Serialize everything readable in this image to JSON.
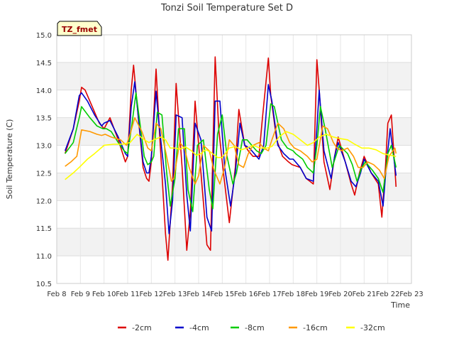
{
  "chart_data": {
    "type": "line",
    "title": "Tonzi Soil Temperature Set D",
    "xlabel": "Time",
    "ylabel": "Soil Temperature (C)",
    "xlim": [
      8,
      23
    ],
    "ylim": [
      10.5,
      15.0
    ],
    "x_ticks": [
      8,
      9,
      10,
      11,
      12,
      13,
      14,
      15,
      16,
      17,
      18,
      19,
      20,
      21,
      22,
      23
    ],
    "x_tick_labels": [
      "Feb 8",
      "Feb 9",
      "Feb 10",
      "Feb 11",
      "Feb 12",
      "Feb 13",
      "Feb 14",
      "Feb 15",
      "Feb 16",
      "Feb 17",
      "Feb 18",
      "Feb 19",
      "Feb 20",
      "Feb 21",
      "Feb 22",
      "Feb 23"
    ],
    "y_ticks": [
      10.5,
      11.0,
      11.5,
      12.0,
      12.5,
      13.0,
      13.5,
      14.0,
      14.5,
      15.0
    ],
    "y_tick_labels": [
      "10.5",
      "11.0",
      "11.5",
      "12.0",
      "12.5",
      "13.0",
      "13.5",
      "14.0",
      "14.5",
      "15.0"
    ],
    "grid": true,
    "legend_position": "bottom",
    "site_label": "TZ_fmet",
    "series": [
      {
        "name": "-2cm",
        "color": "#dd0000",
        "x": [
          8.35,
          8.7,
          8.95,
          9.05,
          9.2,
          9.5,
          9.8,
          10.0,
          10.25,
          10.6,
          10.9,
          11.0,
          11.15,
          11.25,
          11.45,
          11.65,
          11.8,
          11.9,
          12.0,
          12.2,
          12.35,
          12.6,
          12.7,
          12.9,
          13.05,
          13.3,
          13.5,
          13.65,
          13.85,
          14.1,
          14.35,
          14.5,
          14.7,
          14.85,
          15.05,
          15.3,
          15.55,
          15.7,
          15.95,
          16.1,
          16.3,
          16.55,
          16.7,
          16.95,
          17.05,
          17.3,
          17.55,
          17.8,
          17.95,
          18.3,
          18.55,
          18.85,
          19.0,
          19.1,
          19.3,
          19.55,
          19.75,
          19.9,
          20.2,
          20.45,
          20.6,
          20.8,
          21.0,
          21.3,
          21.6,
          21.75,
          21.9,
          22.0,
          22.15,
          22.35
        ],
        "y": [
          12.85,
          13.3,
          13.8,
          14.05,
          14.0,
          13.7,
          13.4,
          13.3,
          13.5,
          13.1,
          12.7,
          12.8,
          14.0,
          14.45,
          13.5,
          12.6,
          12.4,
          12.35,
          12.7,
          14.38,
          13.2,
          11.4,
          10.92,
          12.3,
          14.12,
          12.6,
          11.1,
          11.8,
          13.8,
          12.5,
          11.2,
          11.1,
          14.6,
          13.3,
          12.5,
          11.6,
          12.6,
          13.65,
          13.0,
          12.9,
          12.8,
          12.8,
          13.5,
          14.58,
          13.9,
          13.1,
          12.8,
          12.7,
          12.65,
          12.6,
          12.4,
          12.3,
          14.55,
          14.0,
          12.7,
          12.2,
          12.8,
          13.15,
          12.7,
          12.3,
          12.1,
          12.5,
          12.8,
          12.5,
          12.3,
          11.7,
          12.6,
          13.4,
          13.55,
          12.25
        ]
      },
      {
        "name": "-4cm",
        "color": "#0000cc",
        "x": [
          8.35,
          8.7,
          8.95,
          9.05,
          9.3,
          9.6,
          9.9,
          10.0,
          10.25,
          10.6,
          10.9,
          11.0,
          11.15,
          11.3,
          11.5,
          11.65,
          11.8,
          11.9,
          12.0,
          12.2,
          12.3,
          12.6,
          12.75,
          12.9,
          13.05,
          13.3,
          13.5,
          13.65,
          13.85,
          14.1,
          14.35,
          14.55,
          14.7,
          14.9,
          15.1,
          15.35,
          15.55,
          15.75,
          15.95,
          16.15,
          16.35,
          16.55,
          16.75,
          16.95,
          17.1,
          17.35,
          17.6,
          17.85,
          18.0,
          18.3,
          18.55,
          18.85,
          19.0,
          19.1,
          19.3,
          19.6,
          19.75,
          19.9,
          20.2,
          20.45,
          20.65,
          20.85,
          21.0,
          21.3,
          21.6,
          21.8,
          21.95,
          22.1,
          22.35
        ],
        "y": [
          12.9,
          13.3,
          13.9,
          13.95,
          13.8,
          13.55,
          13.35,
          13.4,
          13.45,
          13.15,
          12.85,
          12.8,
          13.7,
          14.15,
          13.3,
          12.7,
          12.5,
          12.5,
          12.8,
          13.98,
          13.5,
          12.3,
          11.4,
          12.0,
          13.55,
          13.5,
          12.1,
          11.45,
          13.4,
          13.1,
          11.7,
          11.45,
          13.8,
          13.8,
          12.6,
          11.9,
          12.5,
          13.4,
          13.0,
          12.95,
          12.85,
          12.75,
          13.0,
          14.1,
          13.8,
          13.0,
          12.85,
          12.75,
          12.75,
          12.6,
          12.4,
          12.35,
          13.3,
          14.0,
          12.9,
          12.4,
          12.8,
          13.05,
          12.7,
          12.35,
          12.25,
          12.5,
          12.75,
          12.5,
          12.35,
          11.9,
          12.7,
          13.3,
          12.45
        ]
      },
      {
        "name": "-8cm",
        "color": "#00cc00",
        "x": [
          8.35,
          8.7,
          8.95,
          9.05,
          9.4,
          9.7,
          9.95,
          10.1,
          10.3,
          10.6,
          10.85,
          11.0,
          11.2,
          11.35,
          11.55,
          11.7,
          11.85,
          12.0,
          12.1,
          12.25,
          12.45,
          12.65,
          12.8,
          13.0,
          13.15,
          13.4,
          13.55,
          13.75,
          13.95,
          14.2,
          14.45,
          14.6,
          14.8,
          15.0,
          15.2,
          15.45,
          15.6,
          15.85,
          16.05,
          16.25,
          16.45,
          16.65,
          16.85,
          17.05,
          17.2,
          17.5,
          17.75,
          18.0,
          18.1,
          18.4,
          18.6,
          18.85,
          19.0,
          19.15,
          19.35,
          19.65,
          19.8,
          19.95,
          20.3,
          20.5,
          20.7,
          20.9,
          21.05,
          21.35,
          21.6,
          21.8,
          22.0,
          22.15,
          22.35
        ],
        "y": [
          12.85,
          13.05,
          13.5,
          13.7,
          13.5,
          13.35,
          13.3,
          13.3,
          13.25,
          13.05,
          12.9,
          12.85,
          13.45,
          13.95,
          13.3,
          12.8,
          12.65,
          12.7,
          12.8,
          13.6,
          13.55,
          12.5,
          11.9,
          12.4,
          13.3,
          13.3,
          12.2,
          11.8,
          13.0,
          13.1,
          12.2,
          11.85,
          13.2,
          13.55,
          12.8,
          12.3,
          12.5,
          13.1,
          13.1,
          13.0,
          12.9,
          12.85,
          13.0,
          13.75,
          13.7,
          13.1,
          12.95,
          12.9,
          12.85,
          12.75,
          12.6,
          12.5,
          13.0,
          13.7,
          13.3,
          12.6,
          12.8,
          13.0,
          12.85,
          12.65,
          12.35,
          12.6,
          12.7,
          12.55,
          12.4,
          12.15,
          12.85,
          13.0,
          12.6
        ]
      },
      {
        "name": "-16cm",
        "color": "#ff9900",
        "x": [
          8.35,
          8.6,
          8.85,
          9.05,
          9.4,
          9.7,
          9.9,
          10.05,
          10.3,
          10.7,
          10.95,
          11.1,
          11.3,
          11.6,
          11.85,
          12.0,
          12.2,
          12.4,
          12.6,
          12.85,
          12.95,
          13.2,
          13.4,
          13.6,
          13.85,
          14.0,
          14.2,
          14.45,
          14.65,
          14.9,
          15.1,
          15.3,
          15.5,
          15.7,
          15.9,
          16.1,
          16.3,
          16.55,
          16.75,
          16.95,
          17.1,
          17.35,
          17.6,
          17.85,
          18.05,
          18.3,
          18.6,
          18.8,
          19.0,
          19.25,
          19.45,
          19.7,
          19.85,
          20.05,
          20.3,
          20.55,
          20.75,
          20.95,
          21.15,
          21.4,
          21.65,
          21.85,
          22.05,
          22.3,
          22.35
        ],
        "y": [
          12.62,
          12.7,
          12.8,
          13.28,
          13.25,
          13.2,
          13.18,
          13.2,
          13.15,
          13.1,
          13.0,
          13.2,
          13.5,
          13.25,
          12.95,
          12.9,
          13.4,
          13.3,
          12.9,
          12.35,
          12.4,
          13.05,
          12.95,
          12.6,
          12.3,
          12.45,
          13.0,
          12.9,
          12.55,
          12.3,
          12.6,
          13.1,
          13.0,
          12.65,
          12.6,
          12.85,
          13.0,
          13.05,
          12.95,
          12.9,
          13.1,
          13.4,
          13.3,
          13.05,
          12.95,
          12.9,
          12.8,
          12.7,
          12.75,
          13.35,
          13.3,
          13.05,
          12.95,
          12.9,
          12.95,
          12.8,
          12.6,
          12.6,
          12.7,
          12.65,
          12.55,
          12.4,
          12.8,
          12.95,
          12.85
        ]
      },
      {
        "name": "-32cm",
        "color": "#ffff00",
        "x": [
          8.35,
          8.7,
          9.0,
          9.3,
          9.6,
          10.0,
          10.4,
          10.8,
          11.1,
          11.4,
          11.7,
          11.9,
          12.1,
          12.4,
          12.6,
          12.8,
          13.0,
          13.2,
          13.45,
          13.7,
          13.9,
          14.1,
          14.3,
          14.5,
          14.8,
          15.0,
          15.3,
          15.55,
          15.8,
          16.05,
          16.3,
          16.6,
          16.9,
          17.1,
          17.4,
          17.7,
          18.0,
          18.3,
          18.6,
          18.85,
          19.1,
          19.4,
          19.7,
          20.0,
          20.3,
          20.6,
          20.9,
          21.2,
          21.5,
          21.8,
          22.1,
          22.35
        ],
        "y": [
          12.38,
          12.5,
          12.62,
          12.75,
          12.85,
          13.0,
          13.02,
          13.02,
          13.05,
          13.2,
          13.1,
          13.05,
          13.1,
          13.15,
          13.1,
          12.95,
          12.95,
          12.93,
          12.97,
          12.9,
          12.82,
          12.85,
          12.92,
          12.88,
          12.78,
          12.78,
          12.95,
          12.98,
          12.92,
          12.95,
          13.0,
          12.95,
          12.95,
          12.98,
          13.15,
          13.25,
          13.2,
          13.1,
          13.0,
          13.05,
          13.15,
          13.2,
          13.15,
          13.12,
          13.1,
          13.02,
          12.95,
          12.95,
          12.92,
          12.85,
          12.82,
          12.8
        ]
      }
    ]
  }
}
